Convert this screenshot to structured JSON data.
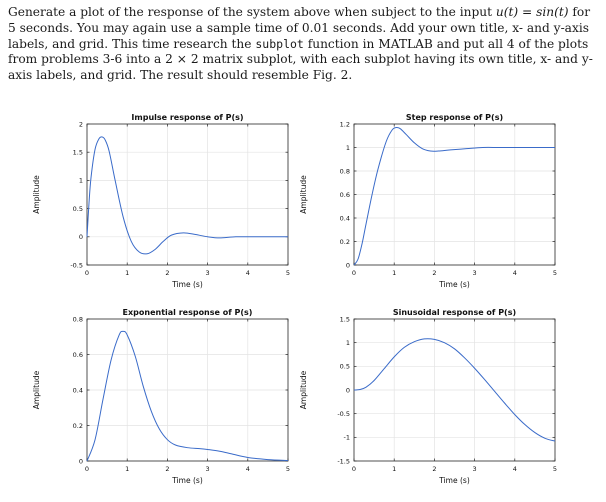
{
  "document": {
    "p1": "Generate a plot of the response of the system above when subject to the input ",
    "eq": "u(t) = sin(t)",
    "p2": " for 5 seconds. You may again use a sample time of 0.01 seconds. Add your own title, x- and y-axis labels, and grid. This time research the ",
    "code": "subplot",
    "p3": " function in MATLAB and put all 4 of the plots from problems 3-6 into a ",
    "dims": "2 × 2",
    "p4": " matrix subplot, with each subplot having its own title, x- and y-axis labels, and grid. The result should resemble Fig. 2."
  },
  "chart_data": [
    {
      "type": "line",
      "title": "Impulse response of P(s)",
      "xlabel": "Time (s)",
      "ylabel": "Amplitude",
      "xlim": [
        0,
        5
      ],
      "ylim": [
        -0.5,
        2
      ],
      "xticks": [
        0,
        1,
        2,
        3,
        4,
        5
      ],
      "yticks": [
        -0.5,
        0,
        0.5,
        1,
        1.5,
        2
      ],
      "grid": true,
      "color": "#3a6bc9",
      "x": [
        0,
        0.05,
        0.1,
        0.2,
        0.3,
        0.38,
        0.45,
        0.55,
        0.7,
        0.9,
        1.1,
        1.3,
        1.5,
        1.7,
        1.9,
        2.1,
        2.4,
        2.7,
        3.0,
        3.3,
        3.7,
        4.2,
        5.0
      ],
      "y": [
        0,
        0.6,
        1.05,
        1.55,
        1.74,
        1.77,
        1.72,
        1.52,
        1.0,
        0.35,
        -0.08,
        -0.27,
        -0.3,
        -0.22,
        -0.08,
        0.03,
        0.07,
        0.04,
        0.0,
        -0.02,
        0.0,
        0.0,
        0.0
      ]
    },
    {
      "type": "line",
      "title": "Step response of P(s)",
      "xlabel": "Time (s)",
      "ylabel": "Amplitude",
      "xlim": [
        0,
        5
      ],
      "ylim": [
        0,
        1.2
      ],
      "xticks": [
        0,
        1,
        2,
        3,
        4,
        5
      ],
      "yticks": [
        0,
        0.2,
        0.4,
        0.6,
        0.8,
        1,
        1.2
      ],
      "grid": true,
      "color": "#3a6bc9",
      "x": [
        0,
        0.1,
        0.2,
        0.3,
        0.45,
        0.6,
        0.8,
        0.95,
        1.05,
        1.15,
        1.3,
        1.5,
        1.7,
        1.9,
        2.1,
        2.4,
        2.8,
        3.2,
        3.6,
        4.0,
        4.5,
        5.0
      ],
      "y": [
        0,
        0.05,
        0.18,
        0.35,
        0.6,
        0.82,
        1.05,
        1.15,
        1.17,
        1.16,
        1.11,
        1.04,
        0.99,
        0.97,
        0.97,
        0.98,
        0.99,
        1.0,
        1.0,
        1.0,
        1.0,
        1.0
      ]
    },
    {
      "type": "line",
      "title": "Exponential response of P(s)",
      "xlabel": "Time (s)",
      "ylabel": "Amplitude",
      "xlim": [
        0,
        5
      ],
      "ylim": [
        0,
        0.8
      ],
      "xticks": [
        0,
        1,
        2,
        3,
        4,
        5
      ],
      "yticks": [
        0,
        0.2,
        0.4,
        0.6,
        0.8
      ],
      "grid": true,
      "color": "#3a6bc9",
      "x": [
        0,
        0.2,
        0.4,
        0.6,
        0.8,
        0.9,
        1.0,
        1.2,
        1.4,
        1.6,
        1.8,
        2.0,
        2.2,
        2.5,
        2.8,
        3.0,
        3.3,
        3.6,
        4.0,
        4.5,
        5.0
      ],
      "y": [
        0,
        0.12,
        0.35,
        0.57,
        0.71,
        0.73,
        0.71,
        0.59,
        0.42,
        0.28,
        0.18,
        0.12,
        0.09,
        0.075,
        0.07,
        0.065,
        0.055,
        0.04,
        0.02,
        0.008,
        0.003
      ]
    },
    {
      "type": "line",
      "title": "Sinusoidal response of P(s)",
      "xlabel": "Time (s)",
      "ylabel": "Amplitude",
      "xlim": [
        0,
        5
      ],
      "ylim": [
        -1.5,
        1.5
      ],
      "xticks": [
        0,
        1,
        2,
        3,
        4,
        5
      ],
      "yticks": [
        -1.5,
        -1,
        -0.5,
        0,
        0.5,
        1,
        1.5
      ],
      "grid": true,
      "color": "#3a6bc9",
      "x": [
        0,
        0.15,
        0.3,
        0.5,
        0.75,
        1.0,
        1.25,
        1.5,
        1.75,
        2.0,
        2.25,
        2.5,
        2.75,
        3.0,
        3.25,
        3.5,
        3.75,
        4.0,
        4.25,
        4.5,
        4.75,
        5.0
      ],
      "y": [
        0,
        0.01,
        0.06,
        0.2,
        0.45,
        0.7,
        0.9,
        1.02,
        1.08,
        1.07,
        1.0,
        0.87,
        0.68,
        0.46,
        0.22,
        -0.03,
        -0.28,
        -0.52,
        -0.73,
        -0.9,
        -1.02,
        -1.08
      ]
    }
  ]
}
